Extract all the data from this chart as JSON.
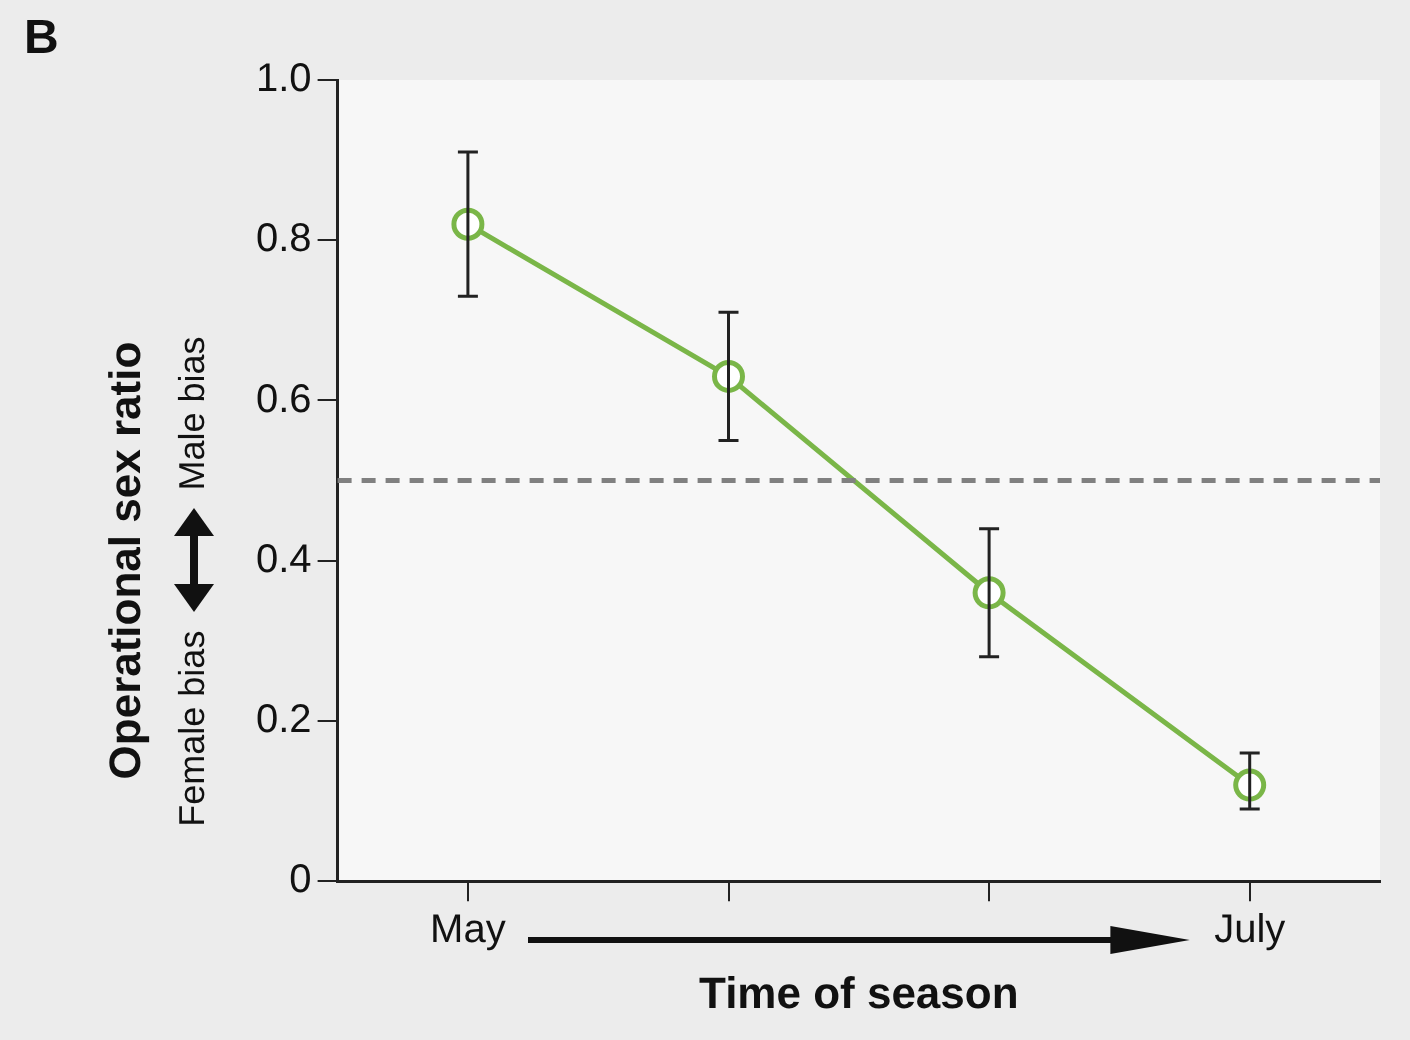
{
  "chart_data": {
    "type": "line",
    "title": "B",
    "xlabel": "Time of season",
    "ylabel": "Operational sex ratio",
    "annotations": [
      "Male bias",
      "Female bias"
    ],
    "categories": [
      "May",
      null,
      null,
      "July"
    ],
    "series": [
      {
        "color": "#7ab648",
        "values": [
          0.82,
          0.63,
          0.36,
          0.12
        ],
        "errors": [
          [
            0.73,
            0.91
          ],
          [
            0.55,
            0.71
          ],
          [
            0.28,
            0.44
          ],
          [
            0.09,
            0.16
          ]
        ]
      }
    ],
    "ylim": [
      0,
      1
    ],
    "yticks": [
      0,
      {
        "value": 0.2,
        "label": "0.2"
      },
      {
        "value": 0.4,
        "label": "0.4"
      },
      {
        "value": 0.6,
        "label": "0.6"
      },
      {
        "value": 0.8,
        "label": "0.8"
      },
      {
        "value": 1,
        "label": "1.0"
      }
    ],
    "ref_lines": [
      {
        "axis": "y",
        "value": 0.5,
        "color": "#808080",
        "line_style": "dashed"
      }
    ],
    "grid": false,
    "legend": false,
    "marker": "circle",
    "line_style": "solid"
  }
}
